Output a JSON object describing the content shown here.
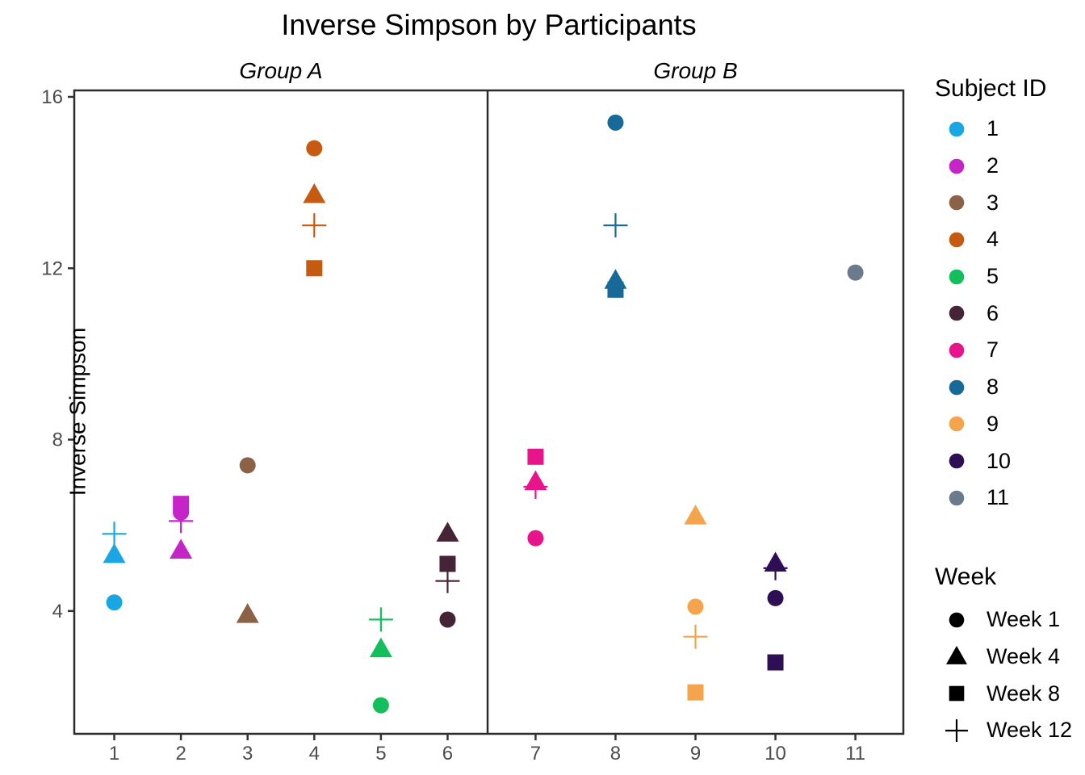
{
  "chart_data": {
    "type": "scatter",
    "title": "Inverse Simpson by Participants",
    "ylabel": "Inverse Simpson",
    "y_ticks": [
      4,
      8,
      12,
      16
    ],
    "ylim": [
      1.1,
      16.2
    ],
    "grid": false,
    "legend_position": "right",
    "facets": [
      {
        "label": "Group A",
        "categories": [
          "1",
          "2",
          "3",
          "4",
          "5",
          "6"
        ]
      },
      {
        "label": "Group B",
        "categories": [
          "7",
          "8",
          "9",
          "10",
          "11"
        ]
      }
    ],
    "legend": {
      "subject_title": "Subject ID",
      "week_title": "Week",
      "weeks": [
        {
          "label": "Week 1",
          "shape": "circle"
        },
        {
          "label": "Week 4",
          "shape": "triangle"
        },
        {
          "label": "Week 8",
          "shape": "square"
        },
        {
          "label": "Week 12",
          "shape": "plus"
        }
      ]
    },
    "subjects": [
      {
        "id": "1",
        "facet": 0,
        "category": "1",
        "color": "#1AA5E3",
        "values": {
          "Week 1": 4.2,
          "Week 4": 5.3,
          "Week 12": 5.8
        }
      },
      {
        "id": "2",
        "facet": 0,
        "category": "2",
        "color": "#C524C9",
        "values": {
          "Week 1": 6.3,
          "Week 4": 5.4,
          "Week 8": 6.5,
          "Week 12": 6.1
        }
      },
      {
        "id": "3",
        "facet": 0,
        "category": "3",
        "color": "#8B6246",
        "values": {
          "Week 1": 7.4,
          "Week 4": 3.9
        }
      },
      {
        "id": "4",
        "facet": 0,
        "category": "4",
        "color": "#C55A11",
        "values": {
          "Week 1": 14.8,
          "Week 4": 13.7,
          "Week 8": 12.0,
          "Week 12": 13.0
        }
      },
      {
        "id": "5",
        "facet": 0,
        "category": "5",
        "color": "#12BF5C",
        "values": {
          "Week 1": 1.8,
          "Week 4": 3.1,
          "Week 12": 3.8
        }
      },
      {
        "id": "6",
        "facet": 0,
        "category": "6",
        "color": "#452438",
        "values": {
          "Week 1": 3.8,
          "Week 4": 5.8,
          "Week 8": 5.1,
          "Week 12": 4.7
        }
      },
      {
        "id": "7",
        "facet": 1,
        "category": "7",
        "color": "#E8148C",
        "values": {
          "Week 1": 5.7,
          "Week 4": 7.0,
          "Week 8": 7.6,
          "Week 12": 6.9
        }
      },
      {
        "id": "8",
        "facet": 1,
        "category": "8",
        "color": "#176A97",
        "values": {
          "Week 1": 15.4,
          "Week 4": 11.7,
          "Week 8": 11.5,
          "Week 12": 13.0
        }
      },
      {
        "id": "9",
        "facet": 1,
        "category": "9",
        "color": "#F3A44D",
        "values": {
          "Week 1": 4.1,
          "Week 4": 6.2,
          "Week 8": 2.1,
          "Week 12": 3.4
        }
      },
      {
        "id": "10",
        "facet": 1,
        "category": "10",
        "color": "#2E0E55",
        "values": {
          "Week 1": 4.3,
          "Week 4": 5.1,
          "Week 8": 2.8,
          "Week 12": 5.0
        }
      },
      {
        "id": "11",
        "facet": 1,
        "category": "11",
        "color": "#6B7B8C",
        "values": {
          "Week 1": 11.9
        }
      }
    ]
  }
}
